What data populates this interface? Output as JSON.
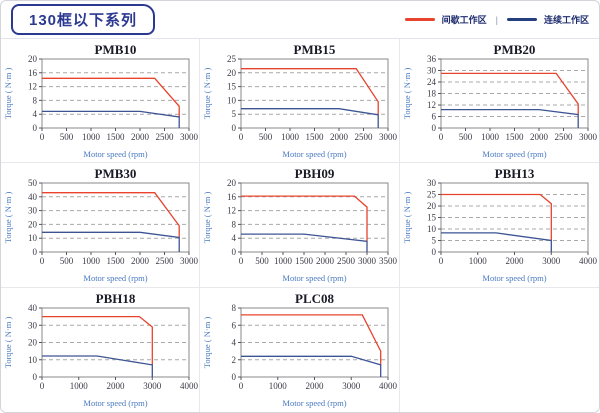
{
  "header": {
    "title": "130框以下系列",
    "separator": "|",
    "legend": [
      {
        "label": "间歇工作区",
        "color": "#e8432c"
      },
      {
        "label": "连续工作区",
        "color": "#24407e"
      }
    ]
  },
  "style": {
    "red": "#e8432c",
    "navy_line": "#3d5493",
    "grid": "#a9a9a9",
    "frame": "#8a8a8a",
    "axis_label_blue": "#4a79c0"
  },
  "chart_data": [
    {
      "type": "line",
      "title": "PMB10",
      "xlabel": "Motor speed (rpm)",
      "ylabel": "Torque ( N·m )",
      "xlim": [
        0,
        3000
      ],
      "ylim": [
        0,
        20
      ],
      "xticks": [
        0,
        500,
        1000,
        1500,
        2000,
        2500,
        3000
      ],
      "yticks": [
        0,
        4,
        8,
        12,
        16,
        20
      ],
      "series": [
        {
          "name": "间歇工作区",
          "color": "#e8432c",
          "points": [
            [
              0,
              14.4
            ],
            [
              2300,
              14.4
            ],
            [
              2800,
              6.3
            ],
            [
              2800,
              3.2
            ]
          ]
        },
        {
          "name": "连续工作区",
          "color": "#3d5493",
          "points": [
            [
              0,
              4.8
            ],
            [
              2000,
              4.8
            ],
            [
              2800,
              3.2
            ],
            [
              2800,
              0
            ]
          ]
        }
      ]
    },
    {
      "type": "line",
      "title": "PMB15",
      "xlabel": "Motor speed (rpm)",
      "ylabel": "Torque ( N·m )",
      "xlim": [
        0,
        3000
      ],
      "ylim": [
        0,
        25
      ],
      "xticks": [
        0,
        500,
        1000,
        1500,
        2000,
        2500,
        3000
      ],
      "yticks": [
        0,
        5,
        10,
        15,
        20,
        25
      ],
      "series": [
        {
          "name": "间歇工作区",
          "color": "#e8432c",
          "points": [
            [
              0,
              21.5
            ],
            [
              2350,
              21.5
            ],
            [
              2800,
              9.5
            ],
            [
              2800,
              4.8
            ]
          ]
        },
        {
          "name": "连续工作区",
          "color": "#3d5493",
          "points": [
            [
              0,
              7
            ],
            [
              2000,
              7
            ],
            [
              2800,
              4.8
            ],
            [
              2800,
              0
            ]
          ]
        }
      ]
    },
    {
      "type": "line",
      "title": "PMB20",
      "xlabel": "Motor speed (rpm)",
      "ylabel": "Torque ( N·m )",
      "xlim": [
        0,
        3000
      ],
      "ylim": [
        0,
        36
      ],
      "xticks": [
        0,
        500,
        1000,
        1500,
        2000,
        2500,
        3000
      ],
      "yticks": [
        0,
        6,
        12,
        18,
        24,
        30,
        36
      ],
      "series": [
        {
          "name": "间歇工作区",
          "color": "#e8432c",
          "points": [
            [
              0,
              28.5
            ],
            [
              2350,
              28.5
            ],
            [
              2800,
              12.5
            ],
            [
              2800,
              7
            ]
          ]
        },
        {
          "name": "连续工作区",
          "color": "#3d5493",
          "points": [
            [
              0,
              9.6
            ],
            [
              2000,
              9.6
            ],
            [
              2800,
              7
            ],
            [
              2800,
              0
            ]
          ]
        }
      ]
    },
    {
      "type": "line",
      "title": "PMB30",
      "xlabel": "Motor speed (rpm)",
      "ylabel": "Torque ( N·m )",
      "xlim": [
        0,
        3000
      ],
      "ylim": [
        0,
        50
      ],
      "xticks": [
        0,
        500,
        1000,
        1500,
        2000,
        2500,
        3000
      ],
      "yticks": [
        0,
        10,
        20,
        30,
        40,
        50
      ],
      "series": [
        {
          "name": "间歇工作区",
          "color": "#e8432c",
          "points": [
            [
              0,
              43
            ],
            [
              2300,
              43
            ],
            [
              2800,
              19
            ],
            [
              2800,
              10.5
            ]
          ]
        },
        {
          "name": "连续工作区",
          "color": "#3d5493",
          "points": [
            [
              0,
              14.3
            ],
            [
              2000,
              14.3
            ],
            [
              2800,
              10.5
            ],
            [
              2800,
              0
            ]
          ]
        }
      ]
    },
    {
      "type": "line",
      "title": "PBH09",
      "xlabel": "Motor speed (rpm)",
      "ylabel": "Torque ( N·m )",
      "xlim": [
        0,
        3500
      ],
      "ylim": [
        0,
        20
      ],
      "xticks": [
        0,
        500,
        1000,
        1500,
        2000,
        2500,
        3000,
        3500
      ],
      "yticks": [
        0,
        4,
        8,
        12,
        16,
        20
      ],
      "series": [
        {
          "name": "间歇工作区",
          "color": "#e8432c",
          "points": [
            [
              0,
              16.2
            ],
            [
              2700,
              16.2
            ],
            [
              3000,
              13
            ],
            [
              3000,
              3.1
            ]
          ]
        },
        {
          "name": "连续工作区",
          "color": "#3d5493",
          "points": [
            [
              0,
              5.2
            ],
            [
              1500,
              5.2
            ],
            [
              3000,
              3.1
            ],
            [
              3000,
              0
            ]
          ]
        }
      ]
    },
    {
      "type": "line",
      "title": "PBH13",
      "xlabel": "Motor speed (rpm)",
      "ylabel": "Torque ( N·m )",
      "xlim": [
        0,
        4000
      ],
      "ylim": [
        0,
        30
      ],
      "xticks": [
        0,
        1000,
        2000,
        3000,
        4000
      ],
      "yticks": [
        0,
        5,
        10,
        15,
        20,
        25,
        30
      ],
      "series": [
        {
          "name": "间歇工作区",
          "color": "#e8432c",
          "points": [
            [
              0,
              25
            ],
            [
              2700,
              25
            ],
            [
              3000,
              21
            ],
            [
              3000,
              5
            ]
          ]
        },
        {
          "name": "连续工作区",
          "color": "#3d5493",
          "points": [
            [
              0,
              8.3
            ],
            [
              1500,
              8.3
            ],
            [
              3000,
              5
            ],
            [
              3000,
              0
            ]
          ]
        }
      ]
    },
    {
      "type": "line",
      "title": "PBH18",
      "xlabel": "Motor speed (rpm)",
      "ylabel": "Torque ( N·m )",
      "xlim": [
        0,
        4000
      ],
      "ylim": [
        0,
        40
      ],
      "xticks": [
        0,
        1000,
        2000,
        3000,
        4000
      ],
      "yticks": [
        0,
        10,
        20,
        30,
        40
      ],
      "series": [
        {
          "name": "间歇工作区",
          "color": "#e8432c",
          "points": [
            [
              0,
              35
            ],
            [
              2650,
              35
            ],
            [
              3000,
              29
            ],
            [
              3000,
              7
            ]
          ]
        },
        {
          "name": "连续工作区",
          "color": "#3d5493",
          "points": [
            [
              0,
              12.2
            ],
            [
              1500,
              12.2
            ],
            [
              3000,
              7
            ],
            [
              3000,
              0
            ]
          ]
        }
      ]
    },
    {
      "type": "line",
      "title": "PLC08",
      "xlabel": "Motor speed (rpm)",
      "ylabel": "Torque ( N·m )",
      "xlim": [
        0,
        4000
      ],
      "ylim": [
        0,
        8
      ],
      "xticks": [
        0,
        1000,
        2000,
        3000,
        4000
      ],
      "yticks": [
        0,
        2,
        4,
        6,
        8
      ],
      "series": [
        {
          "name": "间歇工作区",
          "color": "#e8432c",
          "points": [
            [
              0,
              7.2
            ],
            [
              3300,
              7.2
            ],
            [
              3800,
              3
            ],
            [
              3800,
              1.4
            ]
          ]
        },
        {
          "name": "连续工作区",
          "color": "#3d5493",
          "points": [
            [
              0,
              2.4
            ],
            [
              3000,
              2.4
            ],
            [
              3800,
              1.4
            ],
            [
              3800,
              0
            ]
          ]
        }
      ]
    }
  ]
}
